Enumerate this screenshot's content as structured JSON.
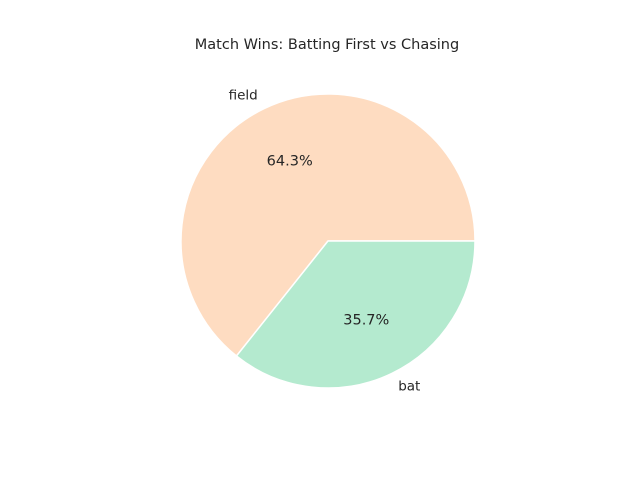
{
  "chart_data": {
    "type": "pie",
    "title": "Match Wins: Batting First vs Chasing",
    "categories": [
      "field",
      "bat"
    ],
    "values": [
      64.3,
      35.7
    ],
    "value_labels": [
      "64.3%",
      "35.7%"
    ],
    "colors": [
      "#fedcc1",
      "#b4eacf"
    ],
    "start_angle_deg": 0,
    "direction": "counterclockwise",
    "slice_edge_color": "#ffffff",
    "legend": "none"
  }
}
